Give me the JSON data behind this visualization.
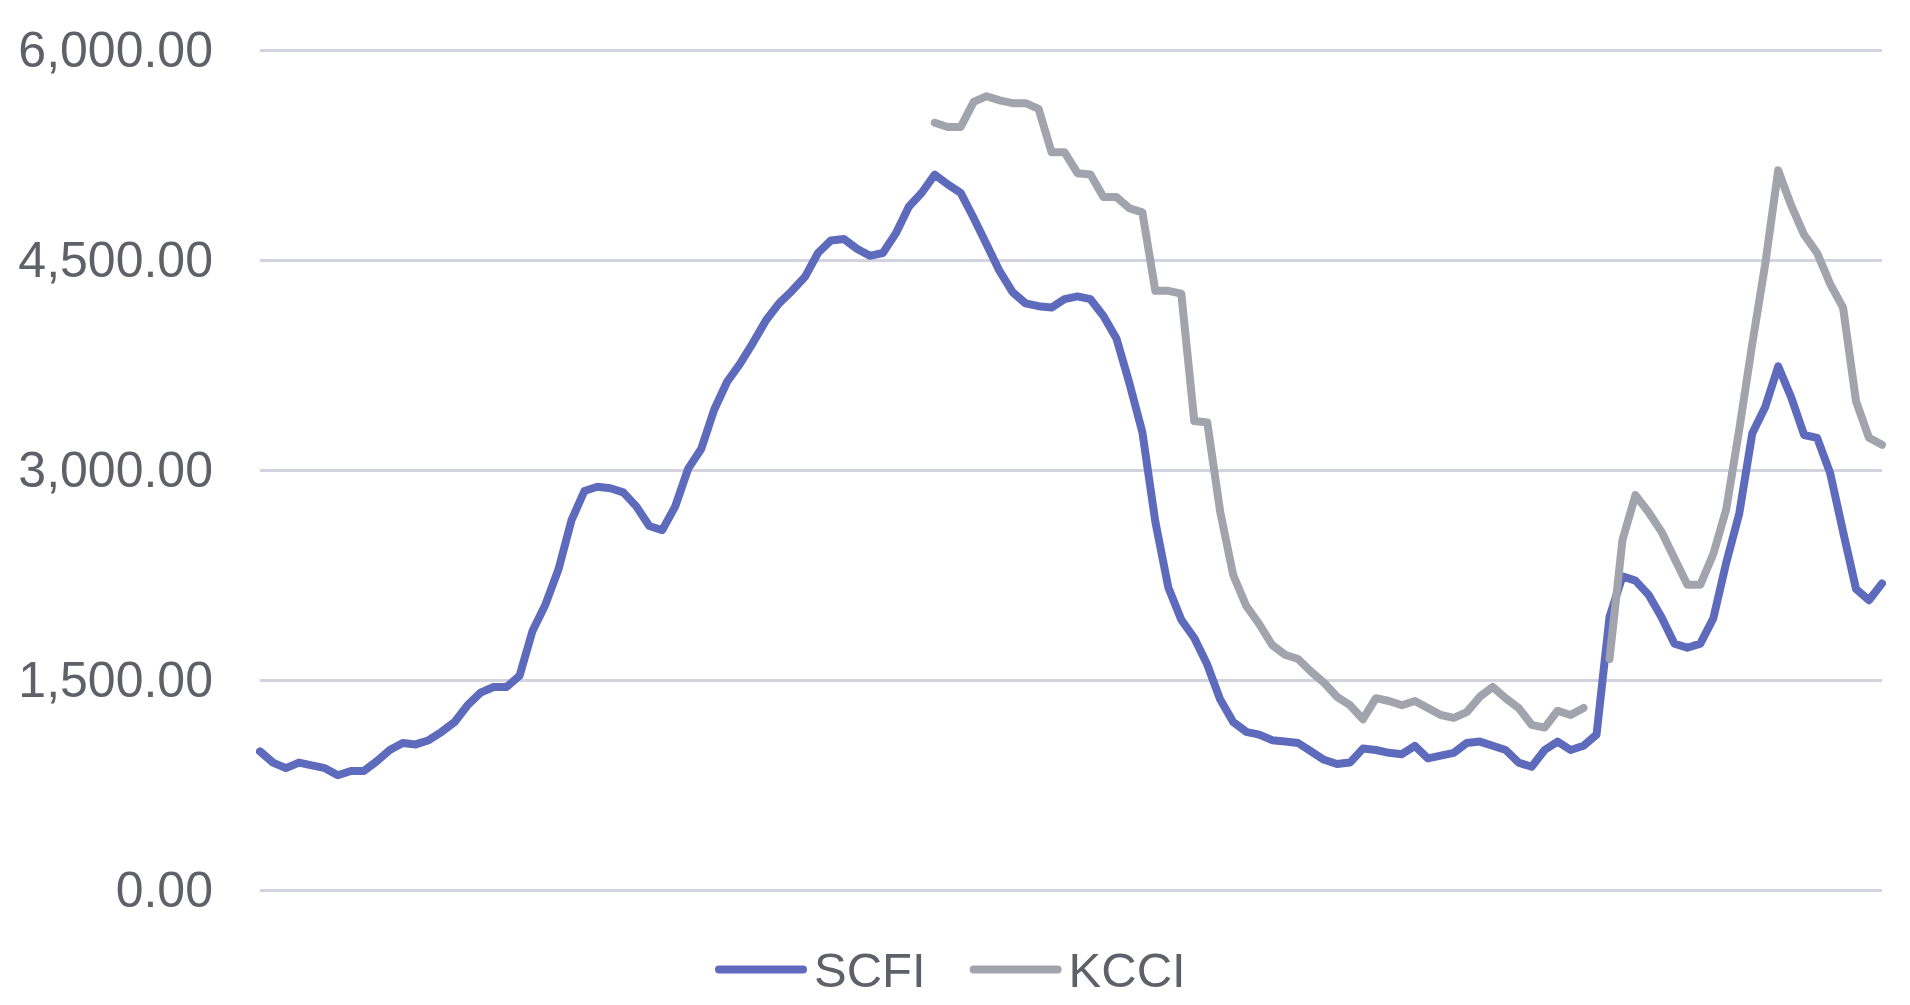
{
  "chart_data": {
    "type": "line",
    "categories": [
      null,
      null,
      null,
      null,
      null,
      null,
      null,
      null,
      null,
      null,
      null,
      null,
      null,
      null,
      null,
      null,
      null,
      null,
      null,
      null,
      null,
      null,
      null,
      null,
      null,
      null,
      null,
      null,
      null,
      null,
      null,
      null,
      null,
      null,
      null,
      null,
      null,
      null,
      null,
      null,
      null,
      null,
      null,
      null,
      null,
      null,
      null,
      null,
      null,
      null,
      null,
      null,
      null,
      null,
      null,
      null,
      null,
      null,
      null,
      null,
      null,
      null,
      null,
      null,
      null,
      null,
      null,
      null,
      null,
      null,
      null,
      null,
      null,
      null,
      null,
      null,
      null,
      null,
      null,
      null,
      null,
      null,
      null,
      null,
      null,
      null,
      null,
      null,
      null,
      null,
      null,
      null,
      null,
      null,
      null,
      null,
      null,
      null,
      null,
      null,
      null,
      null,
      null,
      null,
      null,
      null,
      null,
      null,
      null,
      null,
      null,
      null,
      null,
      null,
      null,
      null,
      null,
      null,
      null,
      null,
      null,
      null,
      null,
      null,
      null,
      null
    ],
    "series": [
      {
        "name": "SCFI",
        "color": "#5e6bbd",
        "values": [
          990,
          910,
          870,
          910,
          890,
          870,
          820,
          850,
          850,
          920,
          1000,
          1050,
          1040,
          1070,
          1130,
          1200,
          1320,
          1410,
          1450,
          1450,
          1530,
          1850,
          2040,
          2290,
          2640,
          2850,
          2880,
          2870,
          2840,
          2740,
          2600,
          2570,
          2740,
          3010,
          3150,
          3430,
          3630,
          3760,
          3910,
          4070,
          4190,
          4280,
          4380,
          4550,
          4640,
          4650,
          4580,
          4530,
          4550,
          4690,
          4880,
          4980,
          5110,
          5040,
          4980,
          4800,
          4610,
          4420,
          4270,
          4190,
          4170,
          4160,
          4220,
          4240,
          4220,
          4100,
          3940,
          3620,
          3270,
          2630,
          2160,
          1930,
          1800,
          1610,
          1360,
          1200,
          1130,
          1110,
          1070,
          1060,
          1050,
          990,
          930,
          900,
          910,
          1010,
          1000,
          980,
          970,
          1030,
          940,
          960,
          980,
          1050,
          1060,
          1030,
          1000,
          910,
          880,
          1000,
          1060,
          1000,
          1030,
          1110,
          1950,
          2240,
          2210,
          2110,
          1950,
          1760,
          1730,
          1760,
          1940,
          2340,
          2690,
          3260,
          3450,
          3740,
          3520,
          3250,
          3230,
          2980,
          2560,
          2150,
          2070,
          2190
        ]
      },
      {
        "name": "KCCI",
        "color": "#a1a3ad",
        "values": [
          null,
          null,
          null,
          null,
          null,
          null,
          null,
          null,
          null,
          null,
          null,
          null,
          null,
          null,
          null,
          null,
          null,
          null,
          null,
          null,
          null,
          null,
          null,
          null,
          null,
          null,
          null,
          null,
          null,
          null,
          null,
          null,
          null,
          null,
          null,
          null,
          null,
          null,
          null,
          null,
          null,
          null,
          null,
          null,
          null,
          null,
          null,
          null,
          null,
          null,
          null,
          null,
          5480,
          5450,
          5450,
          5630,
          5670,
          5640,
          5620,
          5620,
          5580,
          5270,
          5270,
          5120,
          5110,
          4950,
          4950,
          4870,
          4840,
          4280,
          4280,
          4260,
          3350,
          3340,
          2700,
          2250,
          2030,
          1900,
          1750,
          1680,
          1650,
          1560,
          1480,
          1380,
          1320,
          1220,
          1370,
          1350,
          1320,
          1350,
          1300,
          1250,
          1230,
          1270,
          1380,
          1450,
          1370,
          1300,
          1180,
          1160,
          1280,
          1250,
          1300,
          null,
          1650,
          2500,
          2820,
          2700,
          2560,
          2370,
          2180,
          2180,
          2400,
          2720,
          3290,
          3900,
          4470,
          5140,
          4890,
          4680,
          4550,
          4330,
          4160,
          3490,
          3230,
          3180
        ]
      }
    ],
    "ylim": [
      0,
      6000
    ],
    "yticks": [
      {
        "value": 0,
        "label": "0.00"
      },
      {
        "value": 1500,
        "label": "1,500.00"
      },
      {
        "value": 3000,
        "label": "3,000.00"
      },
      {
        "value": 4500,
        "label": "4,500.00"
      },
      {
        "value": 6000,
        "label": "6,000.00"
      }
    ],
    "grid": "y",
    "legend": "bottom",
    "tick_labels": "y",
    "marker": "none",
    "line_style": "solid"
  }
}
